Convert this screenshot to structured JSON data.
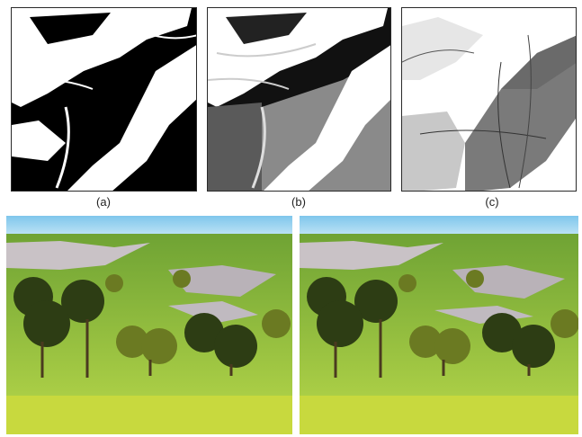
{
  "panels": [
    {
      "label": "(a)",
      "scheme": "binary"
    },
    {
      "label": "(b)",
      "scheme": "grayscale"
    },
    {
      "label": "(c)",
      "scheme": "light-grayscale"
    }
  ],
  "renders": [
    {
      "name": "terrain-render-left"
    },
    {
      "name": "terrain-render-right"
    }
  ],
  "colors": {
    "sky_top": "#7fc6ec",
    "sky_bottom": "#d6eef8",
    "grass": "#6fa334",
    "grass_light": "#b8d84a",
    "rock": "#c9c2c6",
    "tree_dark": "#2d3d14",
    "tree_mid": "#6b7a22"
  }
}
